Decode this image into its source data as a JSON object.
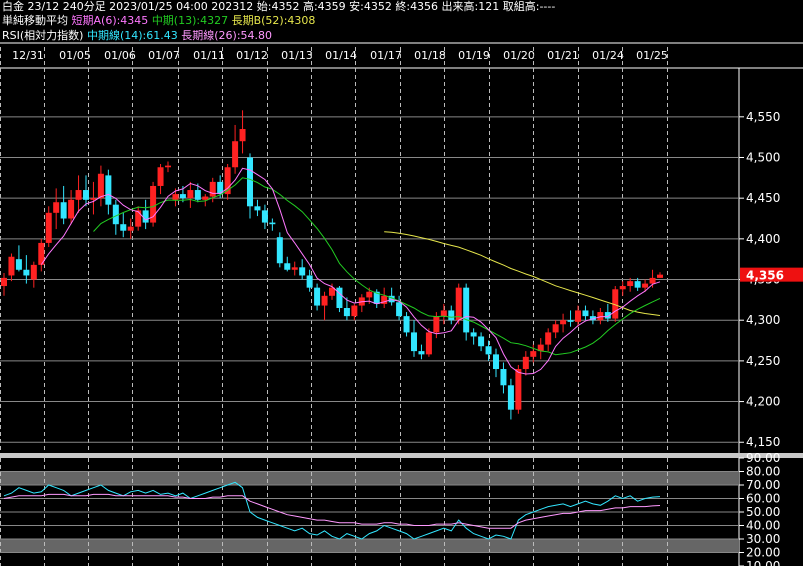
{
  "header": {
    "line1": "白金 23/12 240分足 2023/01/25 04:00 202312 始:4352 高:4359 安:4352 終:4356 出来高:121 取組高:----",
    "ma_title": "単純移動平均",
    "ma_short": "短期A(6):4345",
    "ma_mid": "中期(13):4327",
    "ma_long": "長期B(52):4308",
    "rsi_title": "RSI(相対力指数)",
    "rsi_mid": "中期線(14):61.43",
    "rsi_long": "長期線(26):54.80"
  },
  "colors": {
    "up": "#ff2222",
    "down": "#33e6ff",
    "ma_short": "#ff77ff",
    "ma_mid": "#22cc22",
    "ma_long": "#e6e64c",
    "rsi_mid": "#33e6ff",
    "rsi_long": "#ff99ff",
    "price_tag_bg": "#ee1111"
  },
  "last_price_label": "4,356",
  "chart_data": [
    {
      "type": "candlestick",
      "x_labels": [
        "12/31",
        "01/05",
        "01/06",
        "01/07",
        "01/11",
        "01/12",
        "01/13",
        "01/14",
        "01/17",
        "01/18",
        "01/19",
        "01/20",
        "01/21",
        "01/24",
        "01/25"
      ],
      "y_ticks": [
        4150,
        4200,
        4250,
        4300,
        4350,
        4400,
        4450,
        4500,
        4550
      ],
      "ylim": [
        4138,
        4610
      ],
      "ohlc": [
        [
          4342,
          4358,
          4330,
          4352
        ],
        [
          4355,
          4382,
          4348,
          4378
        ],
        [
          4375,
          4392,
          4360,
          4362
        ],
        [
          4362,
          4380,
          4345,
          4355
        ],
        [
          4350,
          4372,
          4340,
          4368
        ],
        [
          4368,
          4400,
          4360,
          4395
        ],
        [
          4395,
          4440,
          4390,
          4432
        ],
        [
          4432,
          4462,
          4412,
          4445
        ],
        [
          4445,
          4465,
          4418,
          4425
        ],
        [
          4425,
          4460,
          4418,
          4448
        ],
        [
          4448,
          4478,
          4432,
          4460
        ],
        [
          4460,
          4478,
          4440,
          4448
        ],
        [
          4448,
          4470,
          4430,
          4450
        ],
        [
          4450,
          4490,
          4440,
          4480
        ],
        [
          4478,
          4485,
          4430,
          4442
        ],
        [
          4442,
          4448,
          4405,
          4418
        ],
        [
          4418,
          4432,
          4402,
          4410
        ],
        [
          4410,
          4425,
          4400,
          4415
        ],
        [
          4415,
          4440,
          4410,
          4435
        ],
        [
          4435,
          4448,
          4412,
          4420
        ],
        [
          4420,
          4470,
          4415,
          4465
        ],
        [
          4465,
          4492,
          4455,
          4488
        ],
        [
          4488,
          4495,
          4482,
          4490
        ],
        [
          4448,
          4462,
          4440,
          4455
        ],
        [
          4455,
          4465,
          4445,
          4450
        ],
        [
          4450,
          4470,
          4438,
          4460
        ],
        [
          4460,
          4468,
          4445,
          4448
        ],
        [
          4448,
          4455,
          4440,
          4452
        ],
        [
          4452,
          4475,
          4445,
          4470
        ],
        [
          4470,
          4478,
          4450,
          4455
        ],
        [
          4455,
          4492,
          4448,
          4488
        ],
        [
          4488,
          4540,
          4480,
          4520
        ],
        [
          4520,
          4558,
          4505,
          4535
        ],
        [
          4500,
          4505,
          4425,
          4440
        ],
        [
          4440,
          4448,
          4428,
          4435
        ],
        [
          4435,
          4442,
          4412,
          4420
        ],
        [
          4420,
          4425,
          4410,
          4418
        ],
        [
          4402,
          4408,
          4365,
          4370
        ],
        [
          4370,
          4378,
          4360,
          4362
        ],
        [
          4362,
          4372,
          4355,
          4365
        ],
        [
          4365,
          4375,
          4350,
          4355
        ],
        [
          4355,
          4362,
          4335,
          4340
        ],
        [
          4340,
          4345,
          4312,
          4318
        ],
        [
          4318,
          4335,
          4300,
          4330
        ],
        [
          4330,
          4345,
          4325,
          4340
        ],
        [
          4340,
          4342,
          4310,
          4315
        ],
        [
          4315,
          4328,
          4300,
          4305
        ],
        [
          4305,
          4320,
          4300,
          4318
        ],
        [
          4318,
          4332,
          4310,
          4328
        ],
        [
          4328,
          4340,
          4320,
          4335
        ],
        [
          4335,
          4338,
          4315,
          4320
        ],
        [
          4320,
          4340,
          4315,
          4330
        ],
        [
          4330,
          4340,
          4318,
          4322
        ],
        [
          4322,
          4330,
          4300,
          4305
        ],
        [
          4305,
          4310,
          4280,
          4285
        ],
        [
          4285,
          4300,
          4255,
          4262
        ],
        [
          4262,
          4270,
          4252,
          4258
        ],
        [
          4258,
          4290,
          4255,
          4285
        ],
        [
          4285,
          4310,
          4278,
          4305
        ],
        [
          4305,
          4320,
          4295,
          4312
        ],
        [
          4312,
          4318,
          4295,
          4300
        ],
        [
          4300,
          4345,
          4295,
          4340
        ],
        [
          4340,
          4345,
          4275,
          4285
        ],
        [
          4285,
          4290,
          4270,
          4280
        ],
        [
          4280,
          4285,
          4262,
          4268
        ],
        [
          4268,
          4275,
          4250,
          4258
        ],
        [
          4258,
          4265,
          4230,
          4240
        ],
        [
          4240,
          4248,
          4210,
          4220
        ],
        [
          4220,
          4228,
          4178,
          4190
        ],
        [
          4190,
          4245,
          4185,
          4240
        ],
        [
          4240,
          4262,
          4232,
          4255
        ],
        [
          4255,
          4270,
          4248,
          4262
        ],
        [
          4262,
          4278,
          4252,
          4270
        ],
        [
          4270,
          4290,
          4262,
          4285
        ],
        [
          4285,
          4300,
          4278,
          4295
        ],
        [
          4295,
          4308,
          4285,
          4300
        ],
        [
          4300,
          4312,
          4292,
          4298
        ],
        [
          4298,
          4318,
          4292,
          4312
        ],
        [
          4312,
          4318,
          4300,
          4305
        ],
        [
          4305,
          4312,
          4295,
          4300
        ],
        [
          4300,
          4315,
          4295,
          4310
        ],
        [
          4310,
          4320,
          4298,
          4302
        ],
        [
          4302,
          4342,
          4298,
          4338
        ],
        [
          4338,
          4348,
          4330,
          4342
        ],
        [
          4342,
          4352,
          4335,
          4348
        ],
        [
          4348,
          4352,
          4336,
          4340
        ],
        [
          4340,
          4350,
          4335,
          4345
        ],
        [
          4345,
          4362,
          4340,
          4352
        ],
        [
          4352,
          4359,
          4352,
          4356
        ]
      ],
      "ma_short_label": "短期A(6)",
      "ma_mid_label": "中期(13)",
      "ma_long_label": "長期B(52)"
    },
    {
      "type": "line",
      "y_ticks": [
        10,
        20,
        30,
        40,
        50,
        60,
        70,
        80,
        90
      ],
      "ylim": [
        10,
        90
      ],
      "shaded_bands": [
        [
          70,
          80
        ],
        [
          20,
          30
        ]
      ],
      "series": [
        {
          "name": "中期線(14)",
          "color": "#33e6ff",
          "values": [
            62,
            64,
            68,
            66,
            64,
            65,
            70,
            68,
            66,
            62,
            64,
            66,
            68,
            70,
            66,
            64,
            62,
            65,
            66,
            64,
            66,
            63,
            64,
            62,
            64,
            60,
            62,
            64,
            66,
            68,
            70,
            72,
            68,
            50,
            46,
            44,
            42,
            40,
            38,
            36,
            38,
            34,
            33,
            36,
            32,
            30,
            34,
            32,
            30,
            34,
            36,
            40,
            38,
            36,
            34,
            30,
            32,
            34,
            36,
            38,
            36,
            44,
            38,
            34,
            32,
            30,
            33,
            32,
            30,
            44,
            48,
            50,
            52,
            54,
            55,
            56,
            54,
            56,
            58,
            56,
            55,
            58,
            62,
            60,
            62,
            58,
            60,
            61,
            61.43
          ]
        },
        {
          "name": "長期線(26)",
          "color": "#ff99ff",
          "values": [
            60,
            61,
            62,
            62,
            62,
            62,
            63,
            63,
            63,
            62,
            62,
            62,
            63,
            63,
            63,
            62,
            62,
            62,
            62,
            62,
            62,
            62,
            62,
            61,
            61,
            60,
            60,
            60,
            61,
            61,
            62,
            62,
            62,
            58,
            56,
            54,
            52,
            50,
            48,
            47,
            46,
            45,
            44,
            44,
            43,
            42,
            42,
            42,
            41,
            41,
            41,
            42,
            42,
            41,
            41,
            40,
            40,
            40,
            41,
            41,
            41,
            42,
            41,
            40,
            39,
            38,
            38,
            38,
            38,
            42,
            44,
            45,
            46,
            47,
            48,
            49,
            49,
            50,
            51,
            51,
            51,
            52,
            53,
            53,
            54,
            54,
            54,
            54.5,
            54.8
          ]
        }
      ]
    }
  ]
}
